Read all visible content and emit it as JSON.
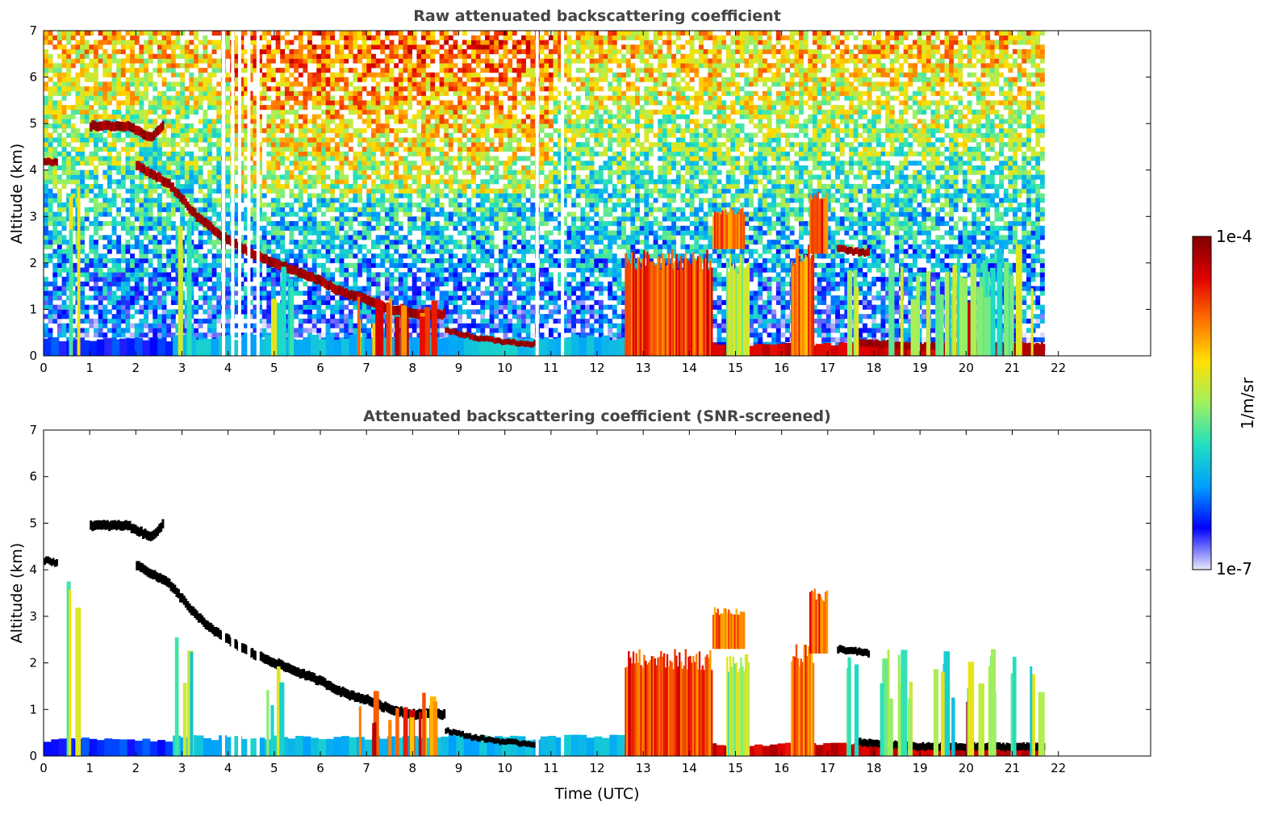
{
  "chart_data": [
    {
      "type": "heatmap",
      "title": "Raw attenuated backscattering coefficient",
      "xlabel": "",
      "ylabel": "Altitude (km)",
      "xlim": [
        0,
        24
      ],
      "ylim": [
        0,
        7
      ],
      "xticks": [
        0,
        1,
        2,
        3,
        4,
        5,
        6,
        7,
        8,
        9,
        10,
        11,
        12,
        13,
        14,
        15,
        16,
        17,
        18,
        19,
        20,
        21,
        22
      ],
      "yticks": [
        0,
        1,
        2,
        3,
        4,
        5,
        6,
        7
      ],
      "data_end_time": 21.7,
      "missing_data_times": [
        3.9,
        4.1,
        4.25,
        4.45,
        4.65,
        10.7,
        11.25
      ],
      "noise": "high",
      "features": [
        {
          "kind": "boundary_layer",
          "t0": 0,
          "t1": 2.8,
          "top": 0.35,
          "level": 0.15
        },
        {
          "kind": "boundary_layer",
          "t0": 2.8,
          "t1": 12.6,
          "top": 0.4,
          "level": 0.3
        },
        {
          "kind": "boundary_layer",
          "t0": 12.6,
          "t1": 21.7,
          "top": 0.25,
          "level": 0.9
        },
        {
          "kind": "cloud_layer",
          "points": [
            [
              2.7,
              3.7
            ],
            [
              3.3,
              3.0
            ],
            [
              3.8,
              2.6
            ],
            [
              4.5,
              2.2
            ],
            [
              5.0,
              2.0
            ],
            [
              5.5,
              1.8
            ],
            [
              6.0,
              1.6
            ],
            [
              6.5,
              1.35
            ],
            [
              7.0,
              1.2
            ],
            [
              7.5,
              1.0
            ],
            [
              8.0,
              0.9
            ],
            [
              8.7,
              0.9
            ]
          ],
          "thickness": 0.2,
          "level": 1.0
        },
        {
          "kind": "cloud_layer",
          "points": [
            [
              8.7,
              0.55
            ],
            [
              9.3,
              0.4
            ],
            [
              10.0,
              0.3
            ],
            [
              10.7,
              0.25
            ]
          ],
          "thickness": 0.12,
          "level": 1.0
        },
        {
          "kind": "cloud_layer",
          "points": [
            [
              0.0,
              4.2
            ],
            [
              0.3,
              4.15
            ]
          ],
          "thickness": 0.15,
          "level": 1.0
        },
        {
          "kind": "cloud_layer",
          "points": [
            [
              1.0,
              4.95
            ],
            [
              1.8,
              4.95
            ],
            [
              2.3,
              4.7
            ],
            [
              2.6,
              5.0
            ]
          ],
          "thickness": 0.2,
          "level": 1.0
        },
        {
          "kind": "cloud_layer",
          "points": [
            [
              2.0,
              4.1
            ],
            [
              2.7,
              3.7
            ]
          ],
          "thickness": 0.2,
          "level": 1.0
        },
        {
          "kind": "cloud_layer",
          "points": [
            [
              17.2,
              2.3
            ],
            [
              17.9,
              2.2
            ]
          ],
          "thickness": 0.15,
          "level": 1.0
        },
        {
          "kind": "cloud_layer",
          "points": [
            [
              17.6,
              0.3
            ],
            [
              19.0,
              0.2
            ],
            [
              20.5,
              0.2
            ],
            [
              21.7,
              0.2
            ]
          ],
          "thickness": 0.15,
          "level": 1.0
        },
        {
          "kind": "cloud_block",
          "t0": 12.6,
          "t1": 14.5,
          "base": 0.0,
          "top": 2.3,
          "level": 0.8
        },
        {
          "kind": "cloud_block",
          "t0": 14.8,
          "t1": 15.3,
          "base": 0.0,
          "top": 2.2,
          "level": 0.5
        },
        {
          "kind": "cloud_block",
          "t0": 16.2,
          "t1": 16.7,
          "base": 0.0,
          "top": 2.4,
          "level": 0.75
        },
        {
          "kind": "cloud_block",
          "t0": 16.6,
          "t1": 17.0,
          "base": 2.2,
          "top": 3.6,
          "level": 0.8
        },
        {
          "kind": "cloud_block",
          "t0": 14.5,
          "t1": 15.2,
          "base": 2.3,
          "top": 3.2,
          "level": 0.75
        },
        {
          "kind": "cloud_block",
          "t0": 20.0,
          "t1": 20.15,
          "base": 0.0,
          "top": 1.3,
          "level": 0.95
        },
        {
          "kind": "precip_streaks",
          "t0": 6.7,
          "t1": 8.5,
          "top": 1.4,
          "level": 0.8
        },
        {
          "kind": "precip_streaks",
          "t0": 2.8,
          "t1": 3.2,
          "top": 3.0,
          "level": 0.45
        },
        {
          "kind": "precip_streaks",
          "t0": 4.8,
          "t1": 5.4,
          "top": 2.0,
          "level": 0.45
        },
        {
          "kind": "precip_streaks",
          "t0": 0.5,
          "t1": 0.75,
          "top": 3.8,
          "level": 0.5
        },
        {
          "kind": "precip_streaks",
          "t0": 17.4,
          "t1": 17.6,
          "top": 2.2,
          "level": 0.5
        },
        {
          "kind": "precip_streaks",
          "t0": 18.1,
          "t1": 21.6,
          "top": 2.4,
          "level": 0.45
        }
      ]
    },
    {
      "type": "heatmap",
      "title": "Attenuated backscattering coefficient (SNR-screened)",
      "xlabel": "Time (UTC)",
      "ylabel": "Altitude (km)",
      "xlim": [
        0,
        24
      ],
      "ylim": [
        0,
        7
      ],
      "xticks": [
        0,
        1,
        2,
        3,
        4,
        5,
        6,
        7,
        8,
        9,
        10,
        11,
        12,
        13,
        14,
        15,
        16,
        17,
        18,
        19,
        20,
        21,
        22
      ],
      "yticks": [
        0,
        1,
        2,
        3,
        4,
        5,
        6,
        7
      ],
      "data_end_time": 21.7,
      "missing_data_times": [
        3.9,
        4.1,
        4.25,
        4.45,
        4.65,
        10.7,
        11.25
      ],
      "noise": "none",
      "cloud_layer_color": "#000000",
      "features": "same_as_raw"
    }
  ],
  "colorbar": {
    "label": "1/m/sr",
    "max_label": "1e-4",
    "min_label": "1e-7",
    "colormap": "jet",
    "colors": [
      "#e8e8f8",
      "#0000ff",
      "#00a0ff",
      "#20e0c0",
      "#a0f060",
      "#ffe000",
      "#ff7000",
      "#e00000",
      "#800000"
    ]
  }
}
